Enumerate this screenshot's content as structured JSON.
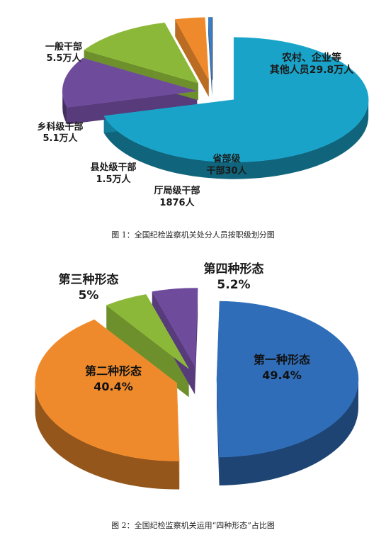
{
  "chart_data": [
    {
      "type": "pie",
      "title": "",
      "caption": "图 1：全国纪检监察机关处分人员按职级划分图",
      "slices": [
        {
          "label_lines": [
            "农村、企业等",
            "其他人员29.8万人"
          ],
          "value": 298000,
          "color": "#1aa3c8"
        },
        {
          "label_lines": [
            "一般干部",
            "5.5万人"
          ],
          "value": 55000,
          "color": "#6f4b9c"
        },
        {
          "label_lines": [
            "乡科级干部",
            "5.1万人"
          ],
          "value": 51000,
          "color": "#8cb83a"
        },
        {
          "label_lines": [
            "县处级干部",
            "1.5万人"
          ],
          "value": 15000,
          "color": "#ef8a2c"
        },
        {
          "label_lines": [
            "厅局级干部",
            "1876人"
          ],
          "value": 1876,
          "color": "#3a7dc4"
        },
        {
          "label_lines": [
            "省部级",
            "干部30人"
          ],
          "value": 30,
          "color": "#2a2a2a"
        }
      ]
    },
    {
      "type": "pie",
      "title": "",
      "caption": "图 2：全国纪检监察机关运用“四种形态”占比图",
      "slices": [
        {
          "label_lines": [
            "第一种形态",
            "49.4%"
          ],
          "value": 49.4,
          "color": "#2f6db8"
        },
        {
          "label_lines": [
            "第二种形态",
            "40.4%"
          ],
          "value": 40.4,
          "color": "#ef8a2c"
        },
        {
          "label_lines": [
            "第三种形态",
            "5%"
          ],
          "value": 5,
          "color": "#8cb83a"
        },
        {
          "label_lines": [
            "第四种形态",
            "5.2%"
          ],
          "value": 5.2,
          "color": "#6f4b9c"
        }
      ]
    }
  ]
}
